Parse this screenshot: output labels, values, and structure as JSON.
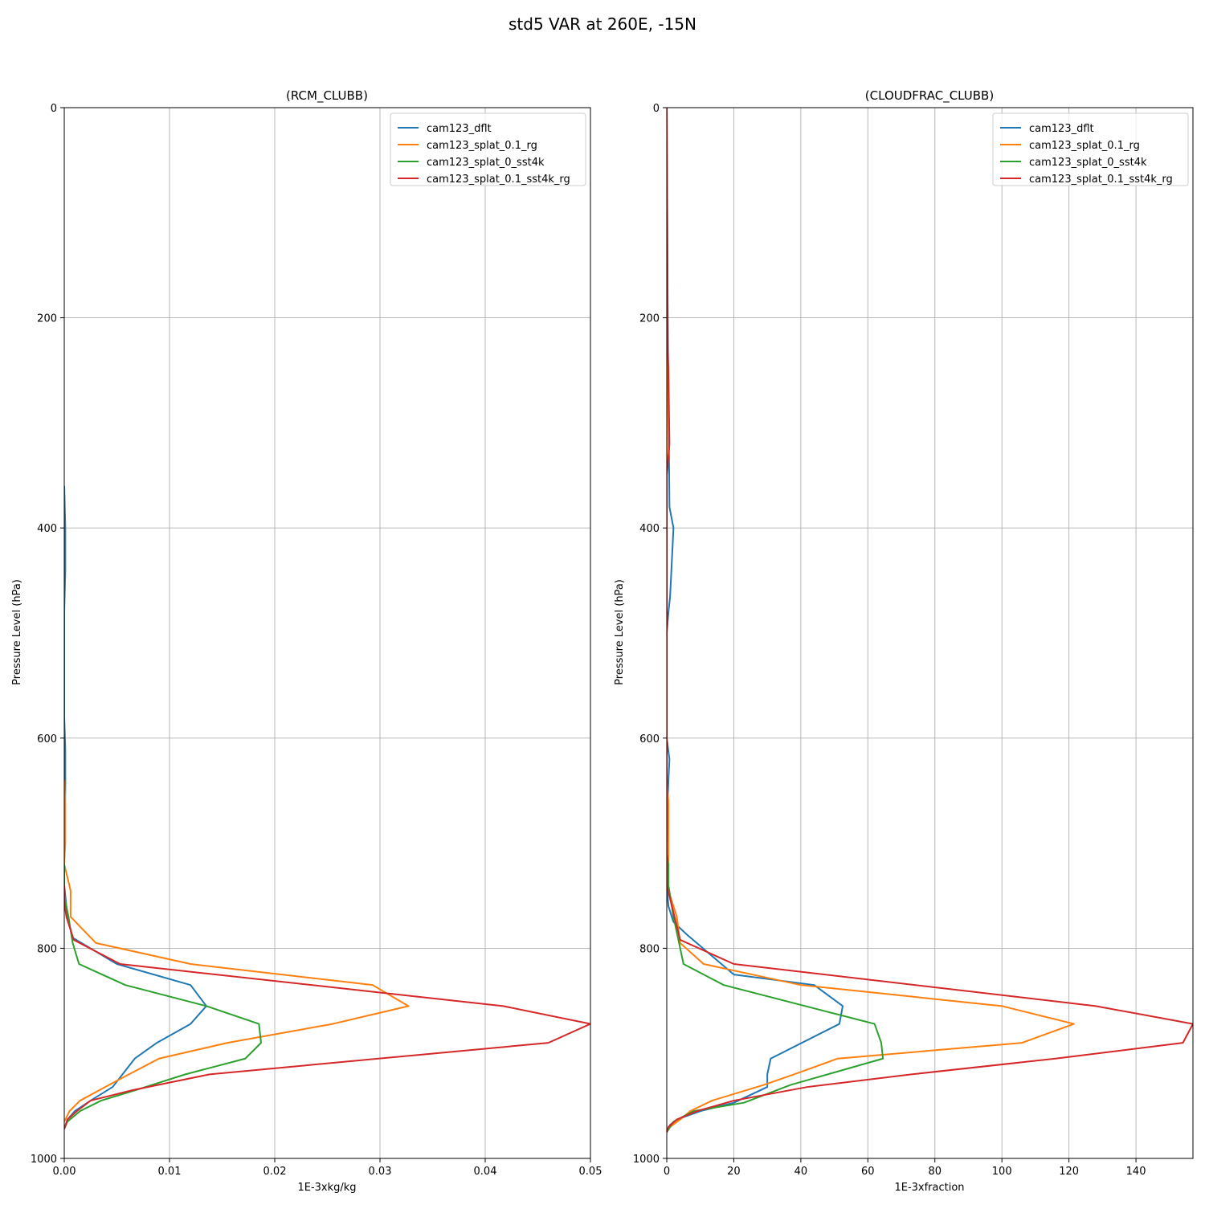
{
  "figure": {
    "suptitle": "std5 VAR at 260E, -15N"
  },
  "chart_data": [
    {
      "type": "line",
      "title": "(RCM_CLUBB)",
      "xlabel": "1E-3xkg/kg",
      "ylabel": "Pressure Level (hPa)",
      "xlim": [
        0,
        0.05
      ],
      "ylim": [
        1000,
        0
      ],
      "y_inverted": true,
      "xticks": [
        0,
        0.01,
        0.02,
        0.03,
        0.04,
        0.05
      ],
      "xtick_labels": [
        "0.00",
        "0.01",
        "0.02",
        "0.03",
        "0.04",
        "0.05"
      ],
      "yticks": [
        0,
        200,
        400,
        600,
        800,
        1000
      ],
      "ytick_labels": [
        "0",
        "200",
        "400",
        "600",
        "800",
        "1000"
      ],
      "grid": true,
      "legend_position": "top-right",
      "series": [
        {
          "name": "cam123_dflt",
          "color": "#1f77b4",
          "x": [
            0,
            0.0001,
            0.0001,
            0,
            0,
            0.0001,
            0.0001,
            0,
            0,
            0.0003,
            0.0008,
            0.005,
            0.012,
            0.0135,
            0.012,
            0.0088,
            0.0067,
            0.0046,
            0.0025,
            0.001,
            0.0003,
            0
          ],
          "y": [
            360,
            400,
            440,
            480,
            580,
            610,
            650,
            700,
            740,
            770,
            790,
            815,
            835,
            855,
            872,
            890,
            905,
            932,
            945,
            955,
            963,
            972
          ]
        },
        {
          "name": "cam123_splat_0.1_rg",
          "color": "#ff7f0e",
          "x": [
            0,
            0.0001,
            0.0001,
            0,
            0.0006,
            0.0006,
            0.0006,
            0.003,
            0.012,
            0.0293,
            0.0327,
            0.0255,
            0.0155,
            0.009,
            0.0052,
            0.0015,
            0.0005,
            0
          ],
          "y": [
            640,
            660,
            700,
            720,
            745,
            755,
            770,
            795,
            815,
            835,
            855,
            872,
            890,
            905,
            925,
            945,
            955,
            965
          ]
        },
        {
          "name": "cam123_splat_0_sst4k",
          "color": "#2ca02c",
          "x": [
            0,
            0,
            0,
            0.0004,
            0.0008,
            0.0014,
            0.0058,
            0.0135,
            0.0185,
            0.0187,
            0.0172,
            0.0115,
            0.0068,
            0.0035,
            0.0015,
            0.0003,
            0
          ],
          "y": [
            720,
            735,
            750,
            770,
            795,
            815,
            835,
            855,
            872,
            890,
            905,
            920,
            935,
            945,
            955,
            965,
            972
          ]
        },
        {
          "name": "cam123_splat_0.1_sst4k_rg",
          "color": "#d62728",
          "x": [
            0,
            0,
            0.0002,
            0.0009,
            0.0053,
            0.0417,
            0.05,
            0.046,
            0.0138,
            0.0065,
            0.0025,
            0.0012,
            0.0003,
            0
          ],
          "y": [
            740,
            755,
            770,
            792,
            815,
            855,
            872,
            890,
            920,
            935,
            945,
            955,
            963,
            972
          ]
        }
      ]
    },
    {
      "type": "line",
      "title": "(CLOUDFRAC_CLUBB)",
      "xlabel": "1E-3xfraction",
      "ylabel": "Pressure Level (hPa)",
      "xlim": [
        0,
        157
      ],
      "ylim": [
        1000,
        0
      ],
      "y_inverted": true,
      "xticks": [
        0,
        20,
        40,
        60,
        80,
        100,
        120,
        140
      ],
      "xtick_labels": [
        "0",
        "20",
        "40",
        "60",
        "80",
        "100",
        "120",
        "140"
      ],
      "yticks": [
        0,
        200,
        400,
        600,
        800,
        1000
      ],
      "ytick_labels": [
        "0",
        "200",
        "400",
        "600",
        "800",
        "1000"
      ],
      "grid": true,
      "legend_position": "top-right",
      "series": [
        {
          "name": "cam123_dflt",
          "color": "#1f77b4",
          "x": [
            0,
            0.3,
            0.8,
            2,
            1,
            0.5,
            0,
            0,
            0.8,
            0.5,
            0,
            0,
            0.5,
            2,
            6,
            20,
            44,
            52.5,
            51.5,
            31,
            30,
            30,
            20,
            10,
            3,
            1,
            0
          ],
          "y": [
            0,
            200,
            380,
            400,
            465,
            480,
            500,
            600,
            620,
            640,
            700,
            740,
            760,
            775,
            787,
            825,
            835,
            855,
            872,
            905,
            920,
            932,
            947,
            955,
            963,
            968,
            975
          ]
        },
        {
          "name": "cam123_splat_0.1_rg",
          "color": "#ff7f0e",
          "x": [
            0,
            0,
            0.5,
            0.5,
            0.5,
            0.5,
            3,
            4,
            11,
            40,
            100,
            121.5,
            106,
            51,
            38,
            29,
            13.5,
            7,
            4,
            1,
            0
          ],
          "y": [
            0,
            640,
            660,
            700,
            720,
            745,
            770,
            795,
            815,
            835,
            855,
            872,
            890,
            905,
            920,
            930,
            945,
            955,
            963,
            970,
            975
          ]
        },
        {
          "name": "cam123_splat_0_sst4k",
          "color": "#2ca02c",
          "x": [
            0,
            0.5,
            0.5,
            2,
            5,
            17,
            62,
            64,
            64.5,
            37,
            23,
            8,
            2,
            0
          ],
          "y": [
            710,
            720,
            740,
            770,
            815,
            835,
            872,
            890,
            905,
            930,
            947,
            955,
            965,
            975
          ]
        },
        {
          "name": "cam123_splat_0.1_sst4k_rg",
          "color": "#d62728",
          "x": [
            0,
            0.3,
            0.5,
            0.8,
            0.3,
            0,
            0,
            4,
            20,
            128,
            157,
            154,
            116,
            73,
            42,
            20,
            9,
            3,
            0.5,
            0
          ],
          "y": [
            0,
            230,
            250,
            320,
            340,
            350,
            740,
            792,
            815,
            855,
            872,
            890,
            905,
            920,
            932,
            945,
            955,
            963,
            970,
            975
          ]
        }
      ]
    }
  ]
}
